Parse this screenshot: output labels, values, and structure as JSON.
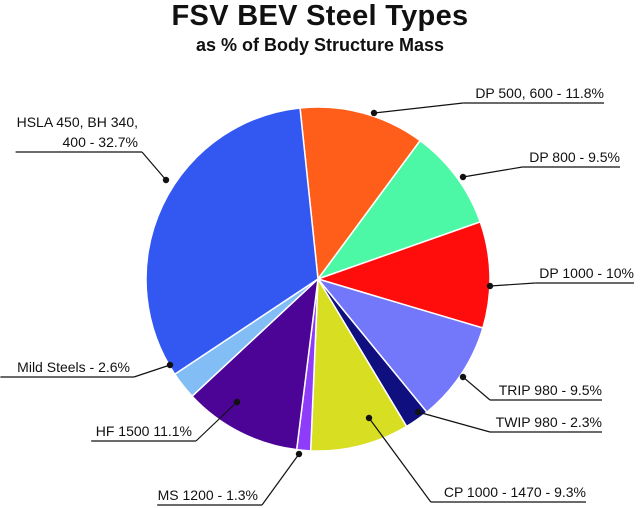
{
  "chart_data": {
    "type": "pie",
    "title": "FSV BEV Steel Types",
    "subtitle": "as % of Body Structure Mass",
    "slices": [
      {
        "label": "DP 500, 600 - 11.8%",
        "value": 11.8,
        "color": "#ff5e1a"
      },
      {
        "label": "DP 800 - 9.5%",
        "value": 9.5,
        "color": "#4cf7a6"
      },
      {
        "label": "DP 1000 - 10%",
        "value": 10.0,
        "color": "#ff0d0d"
      },
      {
        "label": "TRIP 980 - 9.5%",
        "value": 9.5,
        "color": "#7377fa"
      },
      {
        "label": "TWIP 980 - 2.3%",
        "value": 2.3,
        "color": "#0f0f80"
      },
      {
        "label": "CP 1000 - 1470 - 9.3%",
        "value": 9.3,
        "color": "#d8de22"
      },
      {
        "label": "MS 1200 - 1.3%",
        "value": 1.3,
        "color": "#8e3bfa"
      },
      {
        "label": "HF 1500  11.1%",
        "value": 11.1,
        "color": "#4c0496"
      },
      {
        "label": "Mild Steels - 2.6%",
        "value": 2.6,
        "color": "#82bdf5"
      },
      {
        "label": "HSLA 450, BH 340, 400 - 32.7%",
        "label_lines": [
          "HSLA 450, BH 340,",
          "400 - 32.7%"
        ],
        "value": 32.7,
        "color": "#3358f2"
      }
    ]
  }
}
